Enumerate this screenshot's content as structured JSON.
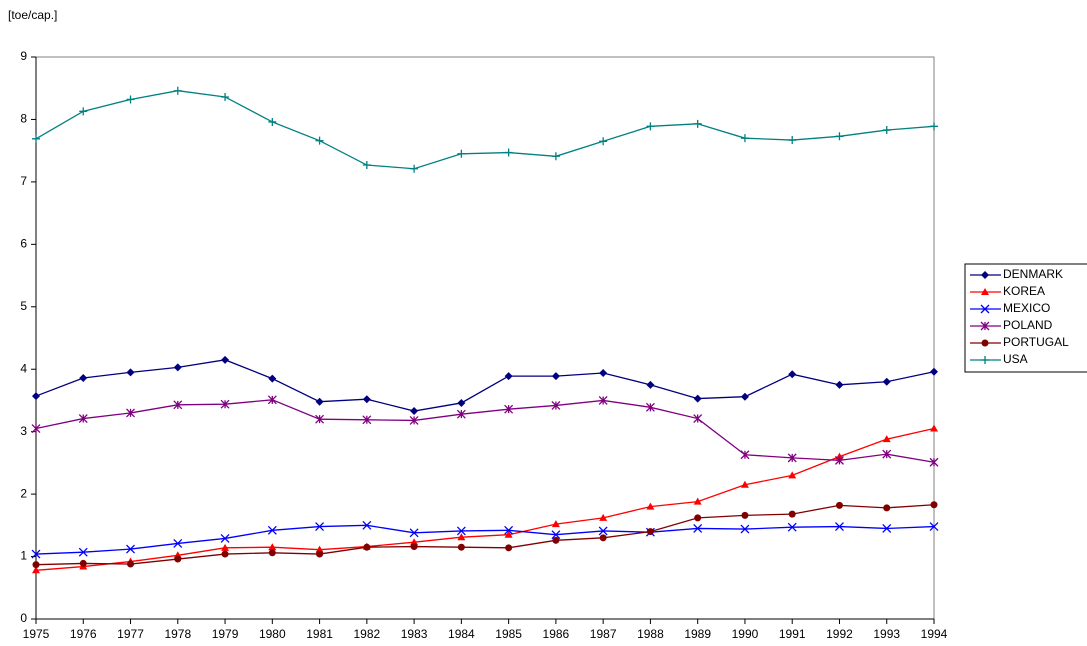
{
  "chart_data": {
    "type": "line",
    "y_label": "[toe/cap.]",
    "categories": [
      "1975",
      "1976",
      "1977",
      "1978",
      "1979",
      "1980",
      "1981",
      "1982",
      "1983",
      "1984",
      "1985",
      "1986",
      "1987",
      "1988",
      "1989",
      "1990",
      "1991",
      "1992",
      "1993",
      "1994"
    ],
    "ylim": [
      0,
      9
    ],
    "yticks": [
      0,
      1,
      2,
      3,
      4,
      5,
      6,
      7,
      8,
      9
    ],
    "grid": false,
    "legend": "right",
    "series": [
      {
        "name": "DENMARK",
        "color": "#000080",
        "marker": "diamond",
        "values": [
          3.57,
          3.86,
          3.95,
          4.03,
          4.15,
          3.85,
          3.48,
          3.52,
          3.33,
          3.46,
          3.89,
          3.89,
          3.94,
          3.75,
          3.53,
          3.56,
          3.92,
          3.75,
          3.8,
          3.96
        ]
      },
      {
        "name": "KOREA",
        "color": "#ff0000",
        "marker": "triangle",
        "values": [
          0.78,
          0.84,
          0.92,
          1.02,
          1.14,
          1.15,
          1.11,
          1.16,
          1.23,
          1.31,
          1.35,
          1.52,
          1.62,
          1.8,
          1.88,
          2.15,
          2.3,
          2.6,
          2.88,
          3.05
        ]
      },
      {
        "name": "MEXICO",
        "color": "#0000ff",
        "marker": "x",
        "values": [
          1.04,
          1.07,
          1.12,
          1.21,
          1.29,
          1.42,
          1.48,
          1.5,
          1.38,
          1.41,
          1.42,
          1.35,
          1.41,
          1.39,
          1.45,
          1.44,
          1.47,
          1.48,
          1.45,
          1.48
        ]
      },
      {
        "name": "POLAND",
        "color": "#800080",
        "marker": "star",
        "values": [
          3.05,
          3.21,
          3.3,
          3.43,
          3.44,
          3.51,
          3.2,
          3.19,
          3.18,
          3.28,
          3.36,
          3.42,
          3.5,
          3.39,
          3.21,
          2.63,
          2.58,
          2.54,
          2.64,
          2.51
        ]
      },
      {
        "name": "PORTUGAL",
        "color": "#800000",
        "marker": "circle",
        "values": [
          0.87,
          0.89,
          0.88,
          0.96,
          1.04,
          1.06,
          1.04,
          1.15,
          1.16,
          1.15,
          1.14,
          1.26,
          1.3,
          1.4,
          1.62,
          1.66,
          1.68,
          1.82,
          1.78,
          1.83
        ]
      },
      {
        "name": "USA",
        "color": "#008080",
        "marker": "plus",
        "values": [
          7.69,
          8.13,
          8.32,
          8.46,
          8.36,
          7.96,
          7.66,
          7.27,
          7.21,
          7.45,
          7.47,
          7.41,
          7.65,
          7.89,
          7.93,
          7.7,
          7.67,
          7.73,
          7.83,
          7.89
        ]
      }
    ]
  }
}
